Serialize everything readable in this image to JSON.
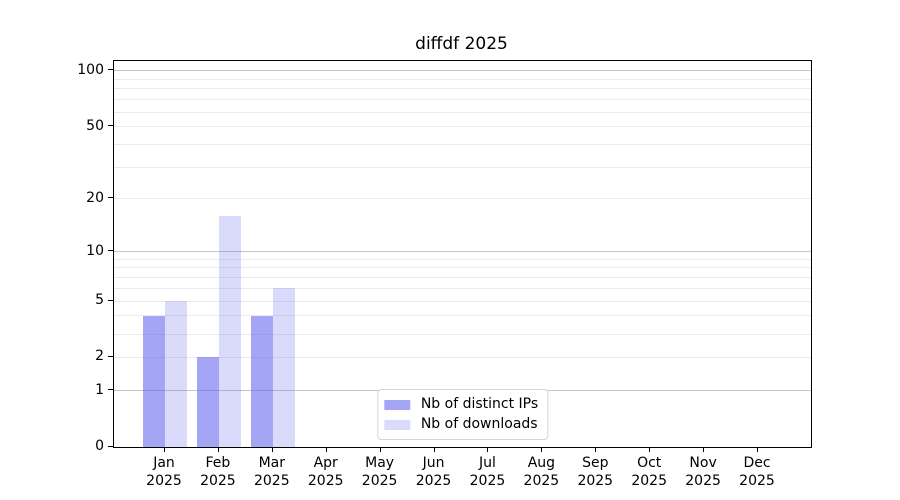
{
  "figure": {
    "title": "diffdf 2025"
  },
  "chart_data": {
    "type": "bar",
    "title": "diffdf 2025",
    "categories": [
      "Jan",
      "Feb",
      "Mar",
      "Apr",
      "May",
      "Jun",
      "Jul",
      "Aug",
      "Sep",
      "Oct",
      "Nov",
      "Dec"
    ],
    "category_year": "2025",
    "series": [
      {
        "name": "Nb of distinct IPs",
        "color": "rgba(100,100,240,0.58)",
        "color_hex_on_white": "#a5a5f5",
        "values": [
          4,
          2,
          4,
          0,
          0,
          0,
          0,
          0,
          0,
          0,
          0,
          0
        ]
      },
      {
        "name": "Nb of downloads",
        "color": "rgba(100,100,240,0.24)",
        "color_hex_on_white": "#dadafa",
        "values": [
          5,
          16,
          6,
          0,
          0,
          0,
          0,
          0,
          0,
          0,
          0,
          0
        ]
      }
    ],
    "yscale": "log1p",
    "ylim": [
      0,
      113
    ],
    "ytick_values": [
      0,
      1,
      2,
      5,
      10,
      20,
      50,
      100
    ],
    "ytick_labels": [
      "0",
      "1",
      "2",
      "5",
      "10",
      "20",
      "50",
      "100"
    ],
    "minor_grid_values": [
      2,
      3,
      4,
      5,
      6,
      7,
      8,
      9,
      20,
      30,
      40,
      50,
      60,
      70,
      80,
      90
    ],
    "major_grid_values": [
      1,
      10,
      100
    ],
    "xlabel": "",
    "ylabel": "",
    "grid": "both",
    "legend_position": "lower center",
    "colors": {
      "major_grid": "#c6c6c6",
      "minor_grid": "#eaeaea",
      "spine": "#000000",
      "background": "#ffffff"
    }
  }
}
